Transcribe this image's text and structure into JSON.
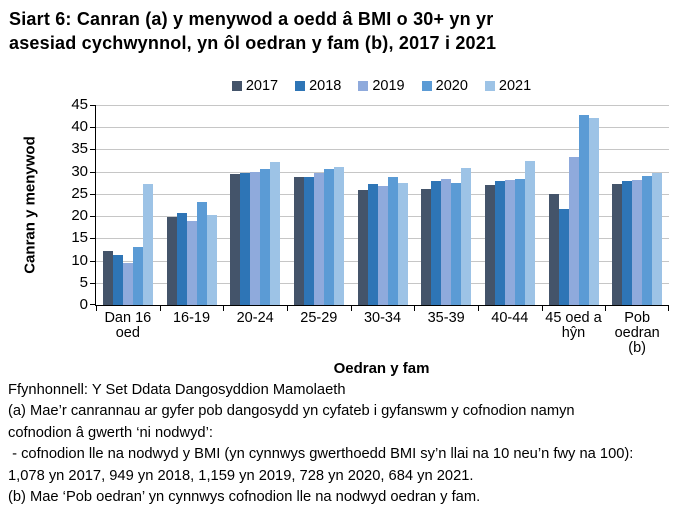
{
  "page_title": {
    "lines": [
      "Siart 6: Canran (a) y menywod a oedd â BMI o 30+ yn yr",
      "asesiad cychwynnol, yn ôl oedran y fam (b), 2017 i 2021"
    ]
  },
  "chart_data": {
    "type": "bar",
    "title": "Siart 6: Canran (a) y menywod a oedd â BMI o 30+ yn yr asesiad cychwynnol, yn ôl oedran y fam (b), 2017 i 2021",
    "categories": [
      "Dan 16 oed",
      "16-19",
      "20-24",
      "25-29",
      "30-34",
      "35-39",
      "40-44",
      "45 oed a hŷn",
      "Pob oedran (b)"
    ],
    "series": [
      {
        "name": "2017",
        "color": "#44546A",
        "values": [
          12.1,
          19.9,
          29.4,
          28.7,
          25.8,
          26.1,
          27.0,
          24.9,
          27.3
        ]
      },
      {
        "name": "2018",
        "color": "#2E75B6",
        "values": [
          11.3,
          20.6,
          29.6,
          28.7,
          27.2,
          27.8,
          27.8,
          21.6,
          27.8
        ]
      },
      {
        "name": "2019",
        "color": "#8FAADC",
        "values": [
          9.5,
          18.9,
          30.0,
          29.7,
          26.7,
          28.4,
          28.1,
          33.2,
          28.2
        ]
      },
      {
        "name": "2020",
        "color": "#5B9BD5",
        "values": [
          13.0,
          23.2,
          30.5,
          30.5,
          28.7,
          27.5,
          28.3,
          42.8,
          29.0
        ]
      },
      {
        "name": "2021",
        "color": "#9DC3E6",
        "values": [
          27.2,
          20.3,
          32.1,
          31.0,
          27.5,
          30.9,
          32.3,
          42.1,
          29.6
        ]
      }
    ],
    "xlabel": "Oedran y fam",
    "ylabel": "Canran y menywod",
    "ylim": [
      0,
      45
    ],
    "ytick_step": 5,
    "grid": true,
    "legend_position": "top",
    "gridline_color": "#C6C6C6"
  },
  "footnotes": {
    "lines": [
      "Ffynhonnell: Y Set Ddata Dangosyddion Mamolaeth",
      "(a) Mae’r canrannau ar gyfer pob dangosydd yn cyfateb i gyfanswm y cofnodion namyn",
      "cofnodion â gwerth ‘ni nodwyd’:",
      " - cofnodion lle na nodwyd y BMI (yn cynnwys gwerthoedd BMI sy’n llai na 10 neu’n fwy na 100):",
      "1,078 yn 2017, 949 yn 2018, 1,159 yn 2019, 728 yn 2020, 684 yn 2021.",
      "(b) Mae ‘Pob oedran’ yn cynnwys cofnodion lle na nodwyd oedran y fam."
    ]
  }
}
